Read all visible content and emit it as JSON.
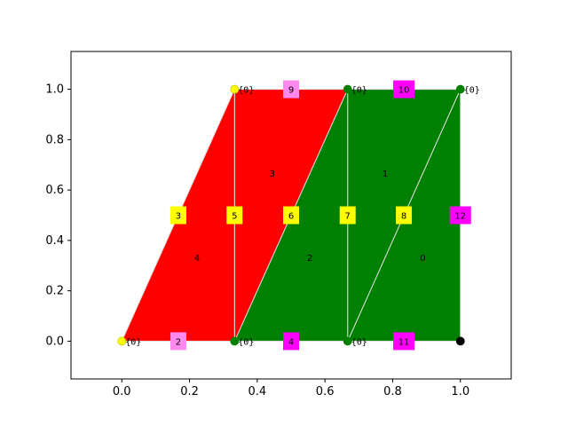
{
  "chart_data": {
    "type": "mesh-diagram",
    "xlim": [
      -0.15,
      1.15
    ],
    "ylim": [
      -0.15,
      1.15
    ],
    "x_ticks": [
      {
        "value": 0.0,
        "label": "0.0"
      },
      {
        "value": 0.2,
        "label": "0.2"
      },
      {
        "value": 0.4,
        "label": "0.4"
      },
      {
        "value": 0.6,
        "label": "0.6"
      },
      {
        "value": 0.8,
        "label": "0.8"
      },
      {
        "value": 1.0,
        "label": "1.0"
      }
    ],
    "y_ticks": [
      {
        "value": 0.0,
        "label": "0.0"
      },
      {
        "value": 0.2,
        "label": "0.2"
      },
      {
        "value": 0.4,
        "label": "0.4"
      },
      {
        "value": 0.6,
        "label": "0.6"
      },
      {
        "value": 0.8,
        "label": "0.8"
      },
      {
        "value": 1.0,
        "label": "1.0"
      }
    ],
    "cells": [
      {
        "label": "0",
        "color": "#008000",
        "points": [
          [
            0.667,
            0.0
          ],
          [
            1.0,
            0.0
          ],
          [
            1.0,
            1.0
          ]
        ]
      },
      {
        "label": "1",
        "color": "#008000",
        "points": [
          [
            0.667,
            0.0
          ],
          [
            1.0,
            1.0
          ],
          [
            0.667,
            1.0
          ]
        ]
      },
      {
        "label": "2",
        "color": "#008000",
        "points": [
          [
            0.333,
            0.0
          ],
          [
            0.667,
            0.0
          ],
          [
            0.667,
            1.0
          ]
        ]
      },
      {
        "label": "3",
        "color": "#ff0000",
        "points": [
          [
            0.333,
            0.0
          ],
          [
            0.667,
            1.0
          ],
          [
            0.333,
            1.0
          ]
        ]
      },
      {
        "label": "4",
        "color": "#ff0000",
        "points": [
          [
            0.0,
            0.0
          ],
          [
            0.333,
            0.0
          ],
          [
            0.333,
            1.0
          ]
        ]
      }
    ],
    "edge_color": "#dddddd",
    "edge_labels": [
      {
        "label": "2",
        "x": 0.167,
        "y": 0.0,
        "color": "#ff88ee"
      },
      {
        "label": "3",
        "x": 0.167,
        "y": 0.5,
        "color": "#ffff00"
      },
      {
        "label": "4",
        "x": 0.5,
        "y": 0.0,
        "color": "#ff00ff"
      },
      {
        "label": "5",
        "x": 0.333,
        "y": 0.5,
        "color": "#ffff00"
      },
      {
        "label": "6",
        "x": 0.5,
        "y": 0.5,
        "color": "#ffff00"
      },
      {
        "label": "7",
        "x": 0.667,
        "y": 0.5,
        "color": "#ffff00"
      },
      {
        "label": "8",
        "x": 0.833,
        "y": 0.5,
        "color": "#ffff00"
      },
      {
        "label": "9",
        "x": 0.5,
        "y": 1.0,
        "color": "#ff88ee"
      },
      {
        "label": "10",
        "x": 0.833,
        "y": 1.0,
        "color": "#ff00ff"
      },
      {
        "label": "11",
        "x": 0.833,
        "y": 0.0,
        "color": "#ff00ff"
      },
      {
        "label": "12",
        "x": 1.0,
        "y": 0.5,
        "color": "#ff00ff"
      }
    ],
    "vertices": [
      {
        "x": 0.0,
        "y": 0.0,
        "color": "#ffff00",
        "label": "{0}"
      },
      {
        "x": 0.333,
        "y": 0.0,
        "color": "#008000",
        "label": "{0}"
      },
      {
        "x": 0.667,
        "y": 0.0,
        "color": "#008000",
        "label": "{0}"
      },
      {
        "x": 1.0,
        "y": 0.0,
        "color": "#000000",
        "label": ""
      },
      {
        "x": 0.333,
        "y": 1.0,
        "color": "#ffff00",
        "label": "{0}"
      },
      {
        "x": 0.667,
        "y": 1.0,
        "color": "#008000",
        "label": "{0}"
      },
      {
        "x": 1.0,
        "y": 1.0,
        "color": "#008000",
        "label": "{0}"
      }
    ]
  }
}
